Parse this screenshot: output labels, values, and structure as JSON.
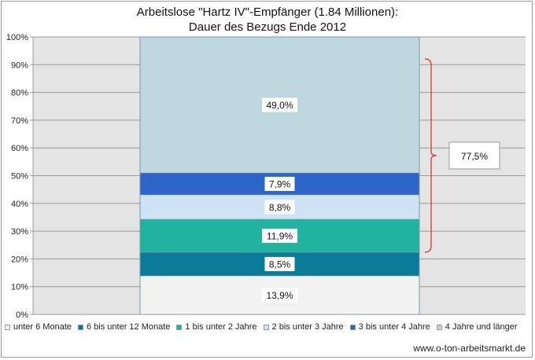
{
  "chart_data": {
    "type": "bar",
    "stacked": true,
    "percent_stacked": true,
    "title_line1": "Arbeitslose \"Hartz IV\"-Empfänger (1.84 Millionen):",
    "title_line2": "Dauer des Bezugs Ende 2012",
    "y_ticks": [
      "0%",
      "10%",
      "20%",
      "30%",
      "40%",
      "50%",
      "60%",
      "70%",
      "80%",
      "90%",
      "100%"
    ],
    "ylim": [
      0,
      100
    ],
    "grid": true,
    "legend_position": "bottom",
    "series": [
      {
        "name": "unter 6 Monate",
        "value": 13.9,
        "label": "13,9%",
        "color": "#f2f2f2"
      },
      {
        "name": "6 bis unter 12 Monate",
        "value": 8.5,
        "label": "8,5%",
        "color": "#0b7b99"
      },
      {
        "name": "1 bis unter 2 Jahre",
        "value": 11.9,
        "label": "11,9%",
        "color": "#22b3a0"
      },
      {
        "name": "2 bis unter 3 Jahre",
        "value": 8.8,
        "label": "8,8%",
        "color": "#cfe3f7"
      },
      {
        "name": "3 bis unter 4 Jahre",
        "value": 7.9,
        "label": "7,9%",
        "color": "#2e63c8"
      },
      {
        "name": "4 Jahre und länger",
        "value": 49.0,
        "label": "49,0%",
        "color": "#bfd8e0"
      }
    ],
    "annotation": {
      "label": "77,5%",
      "from": 22.4,
      "to": 92.1
    }
  },
  "source_text": "www.o-ton-arbeitsmarkt.de",
  "colors": {
    "plot_background": "#e4e4e4",
    "grid": "#9a9a9a",
    "bracket": "#e03030"
  }
}
